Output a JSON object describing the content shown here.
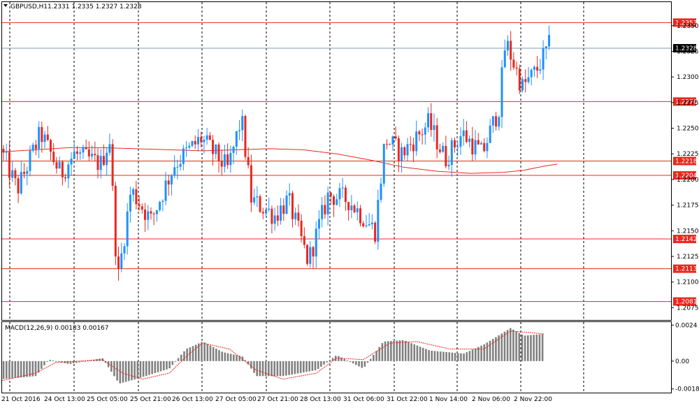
{
  "chart_data": [
    {
      "type": "candlestick",
      "title": "GBPUSD,H1",
      "ohlc_text": "1.2331 1.2335 1.2327 1.2328",
      "ylim": [
        1.2063,
        1.2373
      ],
      "y_ticks": [
        "1.2350",
        "1.2325",
        "1.2300",
        "1.2275",
        "1.2250",
        "1.2225",
        "1.2200",
        "1.2175",
        "1.2150",
        "1.2125",
        "1.2100",
        "1.2075"
      ],
      "x_labels": [
        "21 Oct 2016",
        "24 Oct 13:00",
        "25 Oct 05:00",
        "25 Oct 21:00",
        "26 Oct 13:00",
        "27 Oct 05:00",
        "27 Oct 21:00",
        "28 Oct 13:00",
        "31 Oct 06:00",
        "31 Oct 22:00",
        "1 Nov 14:00",
        "2 Nov 06:00",
        "2 Nov 22:00"
      ],
      "grid": "vertical dashed",
      "levels": [
        "1.2353",
        "1.2276",
        "1.2218",
        "1.2204",
        "1.2142",
        "1.2113",
        "1.2081"
      ],
      "current_price": "1.2328",
      "colors": {
        "bull": "#1e90ff",
        "bear": "#e8281f",
        "level": "#e8281f",
        "current": "#7d9bb5",
        "ma": "#e8281f"
      },
      "moving_average": [
        {
          "x": 0,
          "y": 1.2227
        },
        {
          "x": 0.05,
          "y": 1.2229
        },
        {
          "x": 0.1,
          "y": 1.2231
        },
        {
          "x": 0.15,
          "y": 1.2231
        },
        {
          "x": 0.2,
          "y": 1.223
        },
        {
          "x": 0.25,
          "y": 1.2229
        },
        {
          "x": 0.3,
          "y": 1.2228
        },
        {
          "x": 0.35,
          "y": 1.2229
        },
        {
          "x": 0.4,
          "y": 1.223
        },
        {
          "x": 0.45,
          "y": 1.2229
        },
        {
          "x": 0.5,
          "y": 1.2225
        },
        {
          "x": 0.55,
          "y": 1.2219
        },
        {
          "x": 0.6,
          "y": 1.2212
        },
        {
          "x": 0.65,
          "y": 1.2208
        },
        {
          "x": 0.7,
          "y": 1.2206
        },
        {
          "x": 0.75,
          "y": 1.2207
        },
        {
          "x": 0.78,
          "y": 1.2209
        },
        {
          "x": 0.81,
          "y": 1.2213
        },
        {
          "x": 0.83,
          "y": 1.2215
        }
      ],
      "anchors": [
        {
          "x": 0,
          "y": 1.223
        },
        {
          "x": 0.025,
          "y": 1.219
        },
        {
          "x": 0.06,
          "y": 1.2245
        },
        {
          "x": 0.09,
          "y": 1.2205
        },
        {
          "x": 0.11,
          "y": 1.2225
        },
        {
          "x": 0.15,
          "y": 1.2215
        },
        {
          "x": 0.163,
          "y": 1.224
        },
        {
          "x": 0.175,
          "y": 1.21
        },
        {
          "x": 0.195,
          "y": 1.219
        },
        {
          "x": 0.225,
          "y": 1.216
        },
        {
          "x": 0.26,
          "y": 1.2215
        },
        {
          "x": 0.3,
          "y": 1.224
        },
        {
          "x": 0.34,
          "y": 1.221
        },
        {
          "x": 0.36,
          "y": 1.226
        },
        {
          "x": 0.375,
          "y": 1.218
        },
        {
          "x": 0.41,
          "y": 1.2165
        },
        {
          "x": 0.43,
          "y": 1.218
        },
        {
          "x": 0.46,
          "y": 1.212
        },
        {
          "x": 0.49,
          "y": 1.2185
        },
        {
          "x": 0.52,
          "y": 1.218
        },
        {
          "x": 0.56,
          "y": 1.215
        },
        {
          "x": 0.575,
          "y": 1.224
        },
        {
          "x": 0.6,
          "y": 1.2225
        },
        {
          "x": 0.64,
          "y": 1.2255
        },
        {
          "x": 0.665,
          "y": 1.222
        },
        {
          "x": 0.69,
          "y": 1.2245
        },
        {
          "x": 0.72,
          "y": 1.2225
        },
        {
          "x": 0.745,
          "y": 1.227
        },
        {
          "x": 0.755,
          "y": 1.2335
        },
        {
          "x": 0.78,
          "y": 1.229
        },
        {
          "x": 0.8,
          "y": 1.2305
        },
        {
          "x": 0.82,
          "y": 1.233
        }
      ]
    },
    {
      "type": "histogram",
      "title": "MACD(12,26,9) 0.00183 0.00167",
      "y_ticks": [
        "0.0024",
        "0.00",
        "-0.00185"
      ],
      "ylim": [
        -0.0021,
        0.0026
      ],
      "colors": {
        "bars": "#808080",
        "signal": "#e8281f"
      },
      "anchors": [
        {
          "x": 0,
          "y": -0.0012
        },
        {
          "x": 0.05,
          "y": -0.001
        },
        {
          "x": 0.07,
          "y": 0.0001
        },
        {
          "x": 0.1,
          "y": -0.0002
        },
        {
          "x": 0.15,
          "y": 0.0002
        },
        {
          "x": 0.175,
          "y": -0.0015
        },
        {
          "x": 0.2,
          "y": -0.0012
        },
        {
          "x": 0.25,
          "y": -0.0005
        },
        {
          "x": 0.275,
          "y": 0.0008
        },
        {
          "x": 0.3,
          "y": 0.0013
        },
        {
          "x": 0.33,
          "y": 0.0006
        },
        {
          "x": 0.36,
          "y": 0.0003
        },
        {
          "x": 0.38,
          "y": -0.001
        },
        {
          "x": 0.42,
          "y": -0.001
        },
        {
          "x": 0.47,
          "y": -0.0006
        },
        {
          "x": 0.5,
          "y": 0.0004
        },
        {
          "x": 0.54,
          "y": -0.0005
        },
        {
          "x": 0.57,
          "y": 0.0013
        },
        {
          "x": 0.6,
          "y": 0.0014
        },
        {
          "x": 0.64,
          "y": 0.0007
        },
        {
          "x": 0.69,
          "y": 0.0005
        },
        {
          "x": 0.72,
          "y": 0.0011
        },
        {
          "x": 0.76,
          "y": 0.0022
        },
        {
          "x": 0.78,
          "y": 0.0017
        },
        {
          "x": 0.81,
          "y": 0.0018
        }
      ],
      "signal": [
        {
          "x": 0,
          "y": -0.0013
        },
        {
          "x": 0.05,
          "y": -0.0008
        },
        {
          "x": 0.08,
          "y": -0.0001
        },
        {
          "x": 0.15,
          "y": 0.0001
        },
        {
          "x": 0.18,
          "y": -0.0008
        },
        {
          "x": 0.21,
          "y": -0.0012
        },
        {
          "x": 0.25,
          "y": -0.0008
        },
        {
          "x": 0.28,
          "y": 0.0005
        },
        {
          "x": 0.3,
          "y": 0.0012
        },
        {
          "x": 0.34,
          "y": 0.0008
        },
        {
          "x": 0.38,
          "y": -0.0006
        },
        {
          "x": 0.42,
          "y": -0.0012
        },
        {
          "x": 0.47,
          "y": -0.0008
        },
        {
          "x": 0.5,
          "y": 0.0002
        },
        {
          "x": 0.54,
          "y": 0.0001
        },
        {
          "x": 0.58,
          "y": 0.0012
        },
        {
          "x": 0.62,
          "y": 0.0013
        },
        {
          "x": 0.67,
          "y": 0.0008
        },
        {
          "x": 0.72,
          "y": 0.0008
        },
        {
          "x": 0.76,
          "y": 0.002
        },
        {
          "x": 0.79,
          "y": 0.0019
        },
        {
          "x": 0.81,
          "y": 0.0018
        }
      ]
    }
  ]
}
